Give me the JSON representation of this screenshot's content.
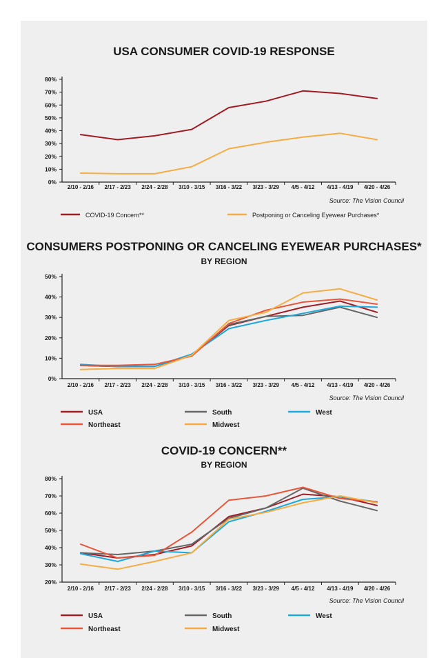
{
  "colors": {
    "background": "#efefef",
    "USA": "#a01c24",
    "Northeast": "#e8563a",
    "South": "#666666",
    "West": "#1fa8dc",
    "Midwest": "#f5ad43",
    "COVID-19 Concern**": "#a01c24",
    "Postponing or Canceling Eyewear Purchases*": "#f5ad43"
  },
  "chart_data": [
    {
      "type": "line",
      "title": "USA CONSUMER COVID-19 RESPONSE",
      "subtitle": "",
      "source": "Source: The Vision Council",
      "categories": [
        "2/10 - 2/16",
        "2/17 - 2/23",
        "2/24 - 2/28",
        "3/10 - 3/15",
        "3/16 - 3/22",
        "3/23 - 3/29",
        "4/5 - 4/12",
        "4/13 - 4/19",
        "4/20 - 4/26"
      ],
      "ylim": [
        0,
        80
      ],
      "y_ticks": [
        "0%",
        "10%",
        "20%",
        "30%",
        "40%",
        "50%",
        "60%",
        "70%",
        "80%"
      ],
      "grid": false,
      "legend_position": "bottom",
      "series": [
        {
          "name": "COVID-19 Concern**",
          "values": [
            37,
            33,
            36,
            41,
            58,
            63,
            71,
            69,
            65
          ]
        },
        {
          "name": "Postponing or Canceling Eyewear Purchases*",
          "values": [
            7,
            6.5,
            6.5,
            12,
            26,
            31,
            35,
            38,
            33
          ]
        }
      ]
    },
    {
      "type": "line",
      "title": "CONSUMERS POSTPONING OR CANCELING EYEWEAR PURCHASES*",
      "subtitle": "BY REGION",
      "source": "Source: The Vision Council",
      "categories": [
        "2/10 - 2/16",
        "2/17 - 2/23",
        "2/24 - 2/28",
        "3/10 - 3/15",
        "3/16 - 3/22",
        "3/23 - 3/29",
        "4/5 - 4/12",
        "4/13 - 4/19",
        "4/20 - 4/26"
      ],
      "ylim": [
        0,
        50
      ],
      "y_ticks": [
        "0%",
        "10%",
        "20%",
        "30%",
        "40%",
        "50%"
      ],
      "grid": false,
      "legend_position": "bottom",
      "series": [
        {
          "name": "USA",
          "values": [
            6.5,
            6,
            6,
            11.5,
            26,
            30.5,
            35,
            38,
            32.5
          ]
        },
        {
          "name": "South",
          "values": [
            6.5,
            6,
            6,
            11.5,
            26.5,
            30.5,
            31,
            35,
            30
          ]
        },
        {
          "name": "West",
          "values": [
            7,
            6,
            6,
            12,
            24.5,
            28.5,
            32,
            35.5,
            35
          ]
        },
        {
          "name": "Northeast",
          "values": [
            6.5,
            6.5,
            7,
            11,
            27,
            33.5,
            37.5,
            39,
            36.5
          ]
        },
        {
          "name": "Midwest",
          "values": [
            4.5,
            5,
            5,
            11.5,
            28.5,
            32.5,
            42,
            44,
            38.5
          ]
        }
      ]
    },
    {
      "type": "line",
      "title": "COVID-19 CONCERN**",
      "subtitle": "BY REGION",
      "source": "Source: The Vision Council",
      "categories": [
        "2/10 - 2/16",
        "2/17 - 2/23",
        "2/24 - 2/28",
        "3/10 - 3/15",
        "3/16 - 3/22",
        "3/23 - 3/29",
        "4/5 - 4/12",
        "4/13 - 4/19",
        "4/20 - 4/26"
      ],
      "ylim": [
        20,
        80
      ],
      "y_ticks": [
        "20%",
        "30%",
        "40%",
        "50%",
        "60%",
        "70%",
        "80%"
      ],
      "grid": false,
      "legend_position": "bottom",
      "series": [
        {
          "name": "USA",
          "values": [
            37,
            34,
            36,
            41,
            58,
            63,
            71,
            69.5,
            64.5
          ]
        },
        {
          "name": "South",
          "values": [
            37,
            36,
            38,
            42,
            57,
            63,
            74.5,
            67,
            61.5
          ]
        },
        {
          "name": "West",
          "values": [
            36.5,
            32,
            38,
            37,
            55,
            61,
            68,
            69.5,
            66.5
          ]
        },
        {
          "name": "Northeast",
          "values": [
            42,
            34,
            35.5,
            49,
            67.5,
            70,
            75,
            68.5,
            66.5
          ]
        },
        {
          "name": "Midwest",
          "values": [
            30.5,
            27.5,
            32,
            37,
            56.5,
            60.5,
            66,
            70,
            66
          ]
        }
      ]
    }
  ]
}
